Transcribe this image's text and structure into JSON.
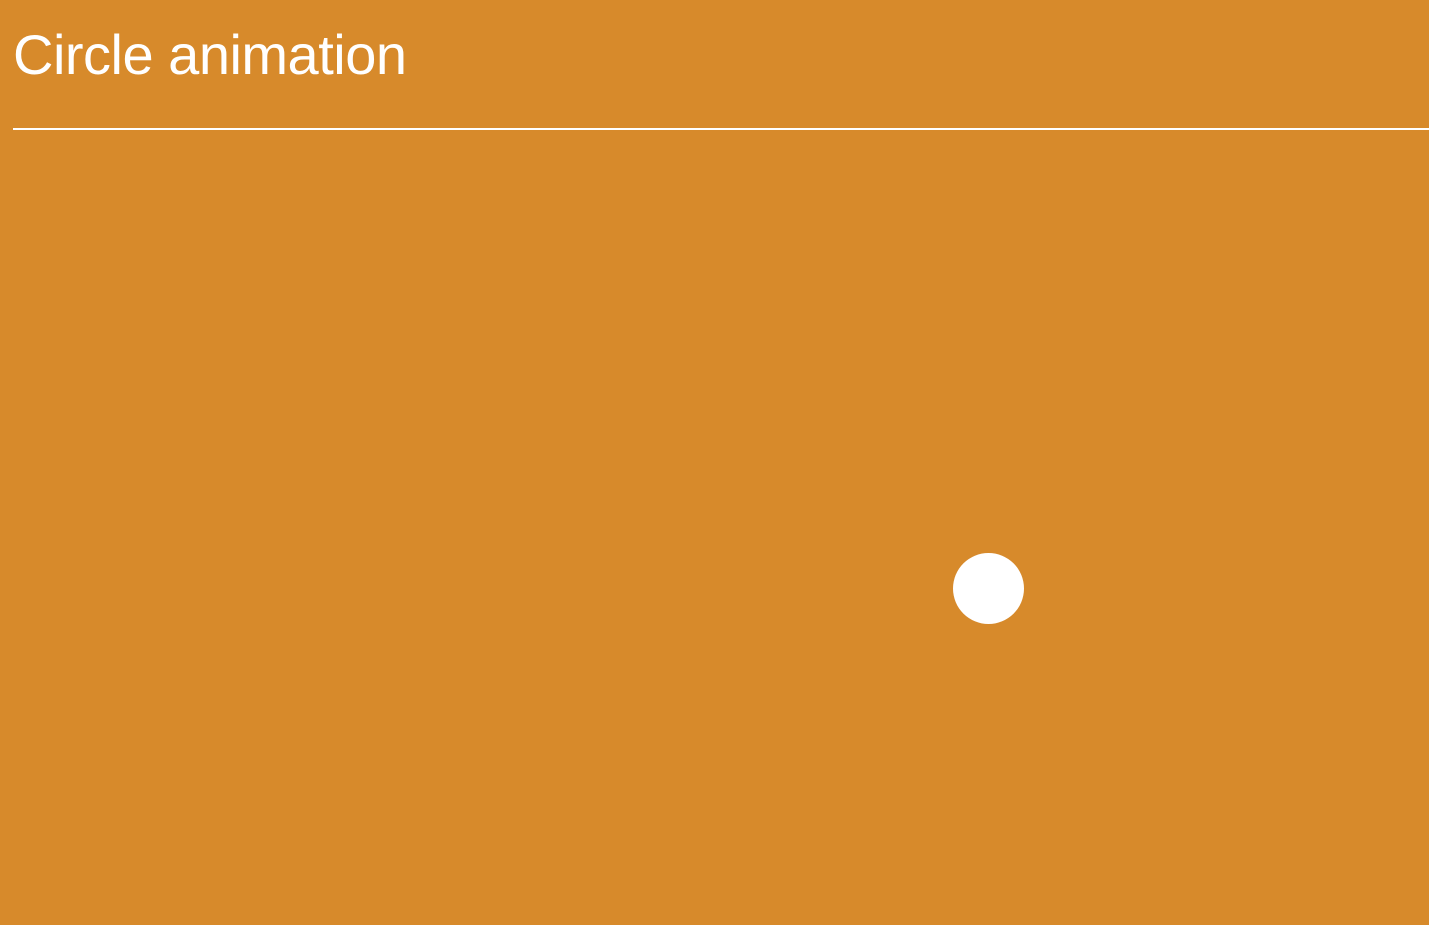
{
  "page": {
    "title": "Circle animation"
  },
  "colors": {
    "background": "#D78A2B",
    "foreground": "#FFFFFF"
  }
}
